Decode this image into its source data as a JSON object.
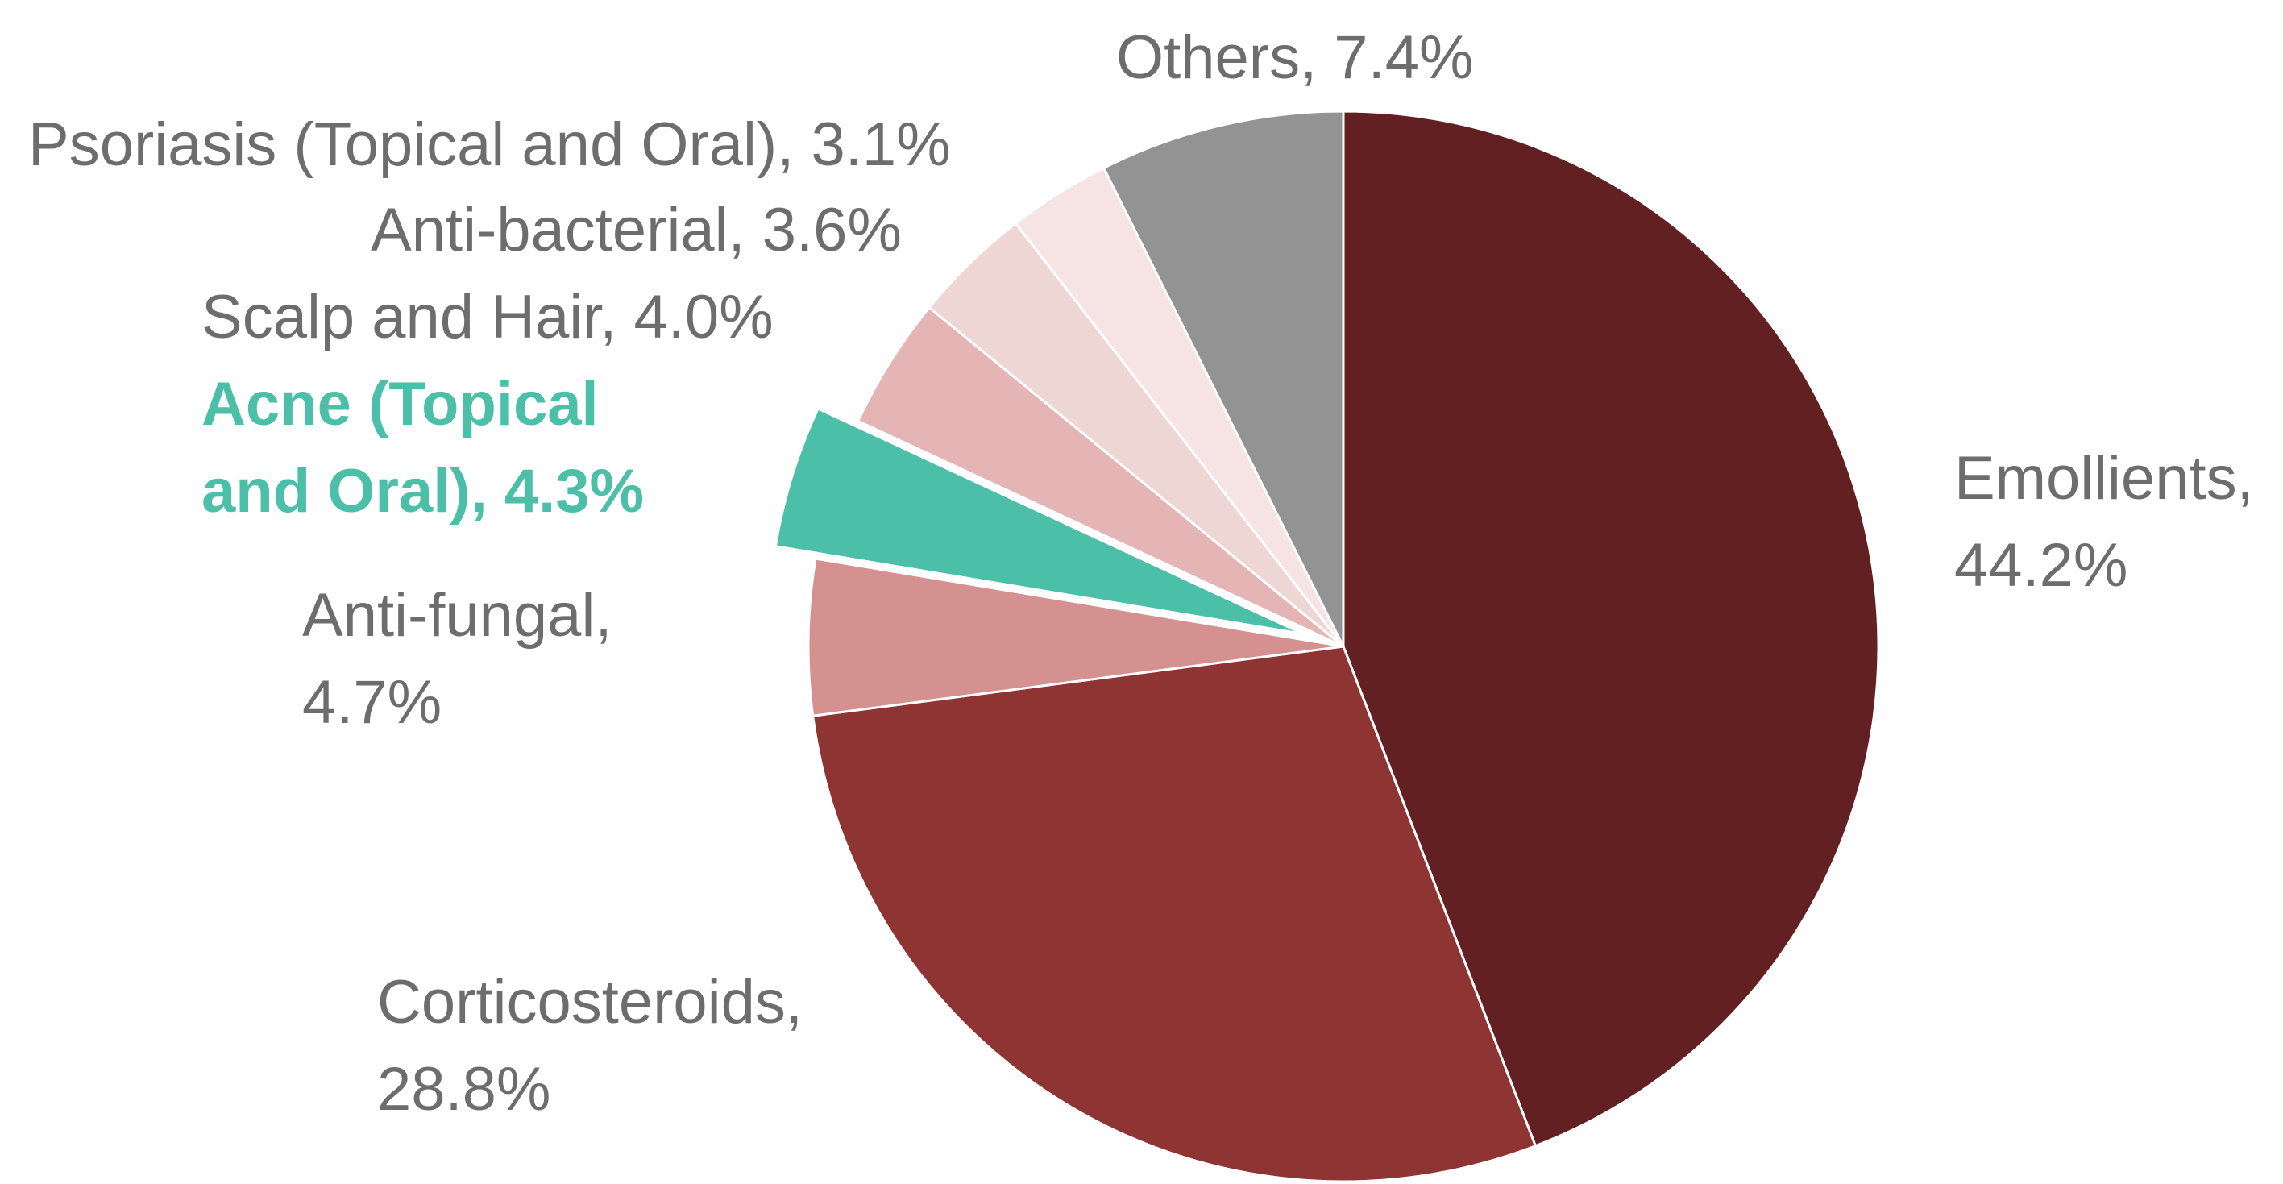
{
  "chart_data": {
    "type": "pie",
    "title": "",
    "start_angle_deg": 0,
    "direction": "clockwise",
    "highlight_color": "#4bbfa8",
    "label_color": "#6d6d6d",
    "slices": [
      {
        "label": "Emollients, 44.2%",
        "category": "Emollients",
        "value": 44.2,
        "color": "#632022",
        "exploded": false
      },
      {
        "label": "Corticosteroids, 28.8%",
        "category": "Corticosteroids",
        "value": 28.8,
        "color": "#8e3432",
        "exploded": false
      },
      {
        "label": "Anti-fungal, 4.7%",
        "category": "Anti-fungal",
        "value": 4.7,
        "color": "#d49190",
        "exploded": false
      },
      {
        "label": "Acne (Topical and Oral), 4.3%",
        "category": "Acne (Topical and Oral)",
        "value": 4.3,
        "color": "#4bbfa8",
        "exploded": true
      },
      {
        "label": "Scalp and Hair, 4.0%",
        "category": "Scalp and Hair",
        "value": 4.0,
        "color": "#e4b5b4",
        "exploded": false
      },
      {
        "label": "Anti-bacterial, 3.6%",
        "category": "Anti-bacterial",
        "value": 3.6,
        "color": "#eed6d5",
        "exploded": false
      },
      {
        "label": "Psoriasis (Topical and Oral), 3.1%",
        "category": "Psoriasis (Topical and Oral)",
        "value": 3.1,
        "color": "#f5e4e3",
        "exploded": false
      },
      {
        "label": "Others, 7.4%",
        "category": "Others",
        "value": 7.4,
        "color": "#939393",
        "exploded": false
      }
    ]
  }
}
